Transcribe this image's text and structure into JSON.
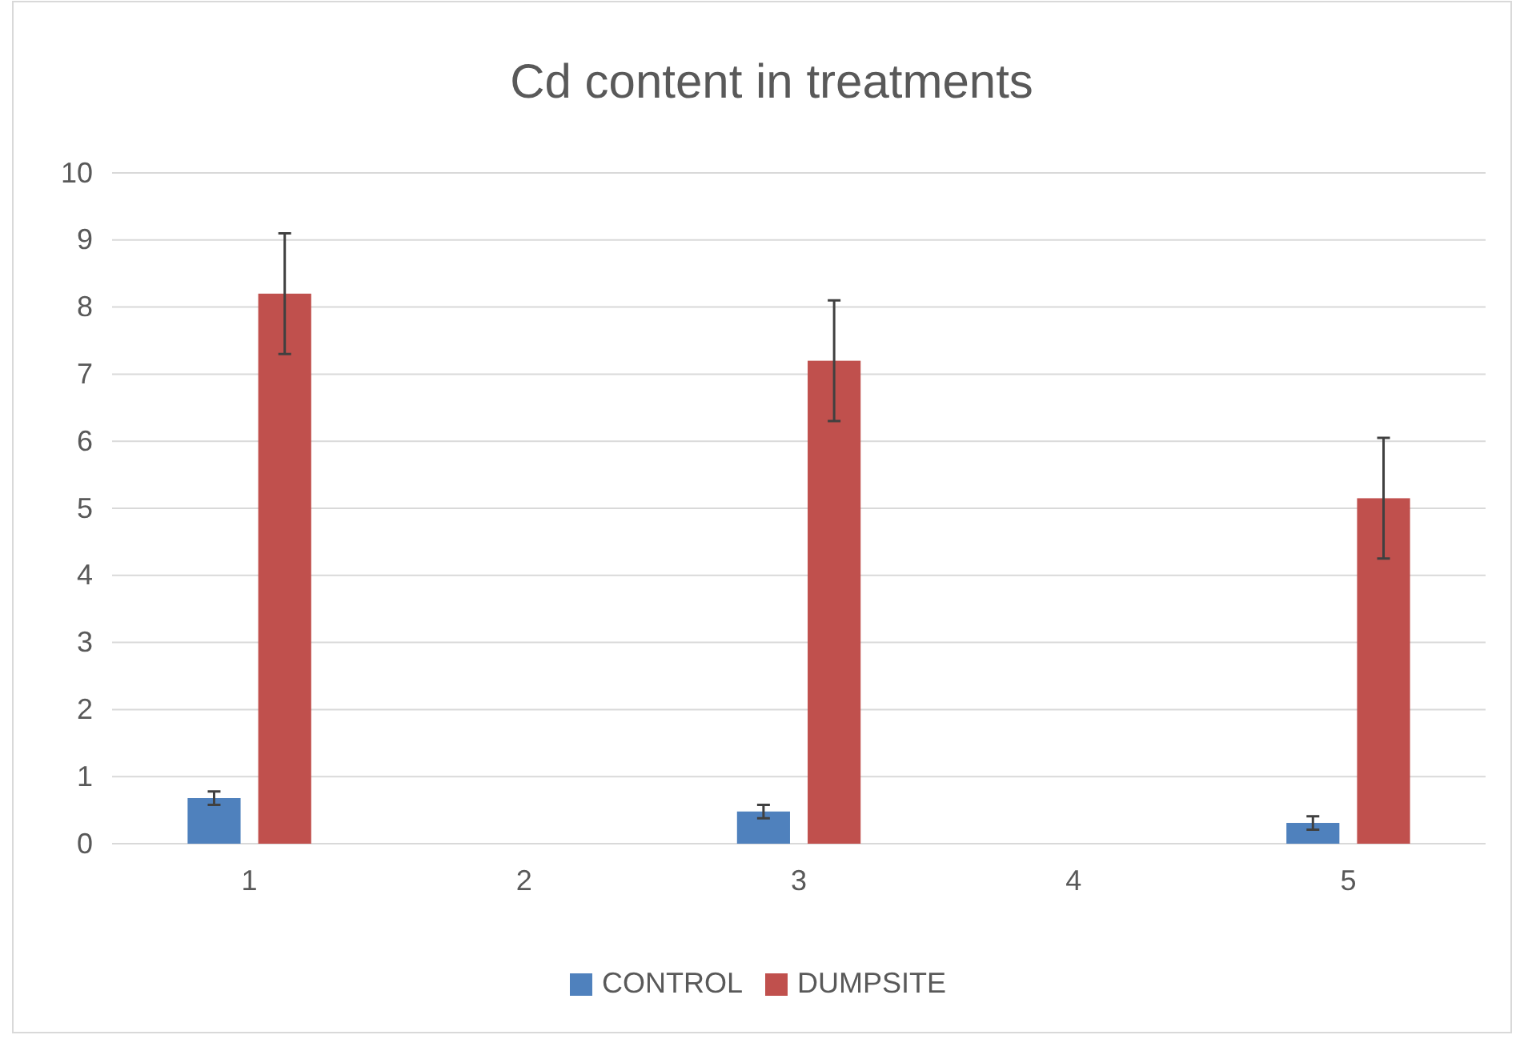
{
  "chart_data": {
    "type": "bar",
    "title": "Cd content in treatments",
    "categories": [
      "1",
      "2",
      "3",
      "4",
      "5"
    ],
    "series": [
      {
        "name": "CONTROL",
        "color": "#4f81bd",
        "values": [
          0.68,
          null,
          0.48,
          null,
          0.31
        ],
        "errors": [
          0.1,
          null,
          0.1,
          null,
          0.1
        ]
      },
      {
        "name": "DUMPSITE",
        "color": "#c0504d",
        "values": [
          8.2,
          null,
          7.2,
          null,
          5.15
        ],
        "errors": [
          0.9,
          null,
          0.9,
          null,
          0.9
        ]
      }
    ],
    "ylim": [
      0,
      10
    ],
    "yticks": [
      0,
      1,
      2,
      3,
      4,
      5,
      6,
      7,
      8,
      9,
      10
    ],
    "grid": "y",
    "legend": "bottom"
  }
}
